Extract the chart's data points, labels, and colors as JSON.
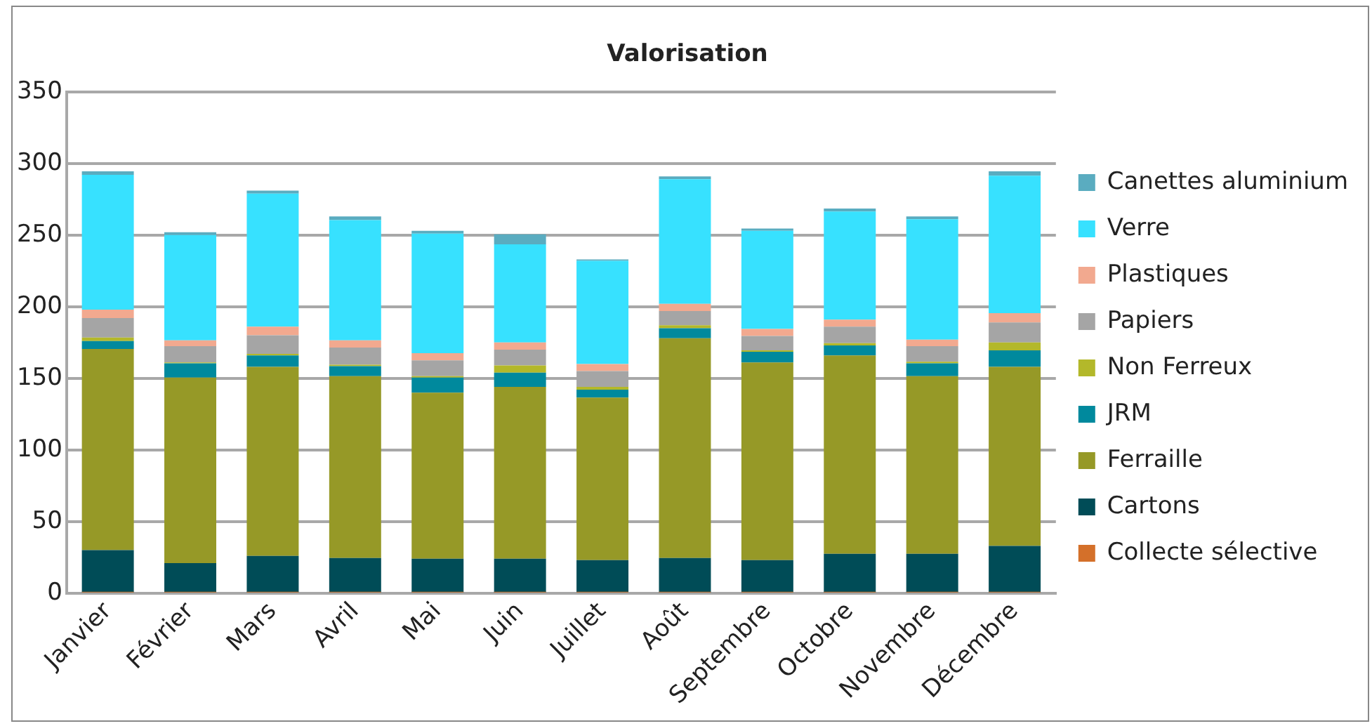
{
  "chart_data": {
    "type": "bar",
    "title": "Valorisation",
    "stacked": true,
    "grid": "y",
    "legend": "right",
    "categories": [
      "Janvier",
      "Février",
      "Mars",
      "Avril",
      "Mai",
      "Juin",
      "Juillet",
      "Août",
      "Septembre",
      "Octobre",
      "Novembre",
      "Décembre"
    ],
    "ylim": [
      0,
      350
    ],
    "yticks": [
      0,
      50,
      100,
      150,
      200,
      250,
      300,
      350
    ],
    "series": [
      {
        "name": "Collecte sélective",
        "color": "#d4702a",
        "values": [
          0.5,
          0.5,
          0.5,
          0.5,
          0.5,
          0.5,
          0.5,
          0.5,
          0.5,
          0.5,
          0.5,
          0.5
        ]
      },
      {
        "name": "Cartons",
        "color": "#004c57",
        "values": [
          29.5,
          20.5,
          25.5,
          24,
          23.5,
          23.5,
          22.5,
          24,
          22.5,
          27,
          27,
          32.5
        ]
      },
      {
        "name": "Ferraille",
        "color": "#969927",
        "values": [
          140.5,
          129.5,
          132,
          127,
          116,
          120,
          113.5,
          153.5,
          138,
          138.5,
          124,
          125
        ]
      },
      {
        "name": "JRM",
        "color": "#00899d",
        "values": [
          5.5,
          10,
          8,
          7,
          10.5,
          10,
          5.5,
          7,
          7.5,
          7,
          9,
          11.5
        ]
      },
      {
        "name": "Non Ferreux",
        "color": "#b3b82a",
        "values": [
          2.5,
          0.5,
          1,
          1,
          1,
          5,
          2,
          2,
          1,
          1.5,
          1,
          5.5
        ]
      },
      {
        "name": "Papiers",
        "color": "#a5a5a5",
        "values": [
          13.5,
          11.5,
          13,
          12,
          11,
          11,
          11,
          10,
          10,
          11.5,
          11,
          14
        ]
      },
      {
        "name": "Plastiques",
        "color": "#f2a98f",
        "values": [
          6,
          4,
          6,
          5,
          5,
          5,
          5,
          5,
          5,
          5,
          4.5,
          6.5
        ]
      },
      {
        "name": "Verre",
        "color": "#37e1ff",
        "values": [
          94,
          73.5,
          93,
          84,
          83.5,
          68.5,
          72,
          87,
          68.5,
          75.5,
          84,
          96
        ]
      },
      {
        "name": "Canettes aluminium",
        "color": "#5aacc0",
        "values": [
          2.5,
          2,
          2,
          2.5,
          2,
          7,
          1,
          2,
          1.5,
          2,
          2,
          3
        ]
      }
    ]
  }
}
